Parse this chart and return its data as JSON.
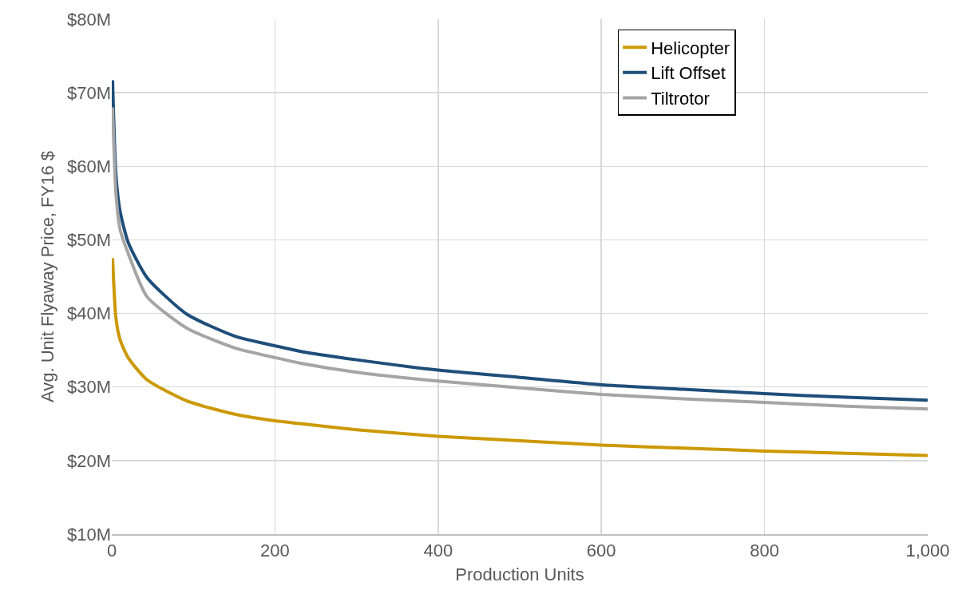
{
  "chart_data": {
    "type": "line",
    "xlabel": "Production Units",
    "ylabel": "Avg. Unit Flyaway Price, FY16 $",
    "xlim": [
      0,
      1000
    ],
    "xticks": [
      0,
      200,
      400,
      600,
      800,
      {
        "value": 1000,
        "label": "1,000"
      }
    ],
    "ylim": [
      10,
      80
    ],
    "yticks": [
      {
        "value": 10,
        "label": "$10M"
      },
      {
        "value": 20,
        "label": "$20M"
      },
      {
        "value": 30,
        "label": "$30M"
      },
      {
        "value": 40,
        "label": "$40M"
      },
      {
        "value": 50,
        "label": "$50M"
      },
      {
        "value": 60,
        "label": "$60M"
      },
      {
        "value": 70,
        "label": "$70M"
      },
      {
        "value": 80,
        "label": "$80M"
      }
    ],
    "grid": true,
    "legend": "top right",
    "marker": "none",
    "line_style": "solid",
    "series": [
      {
        "name": "Helicopter",
        "color": "#cc9900",
        "x": [
          1,
          5,
          10,
          20,
          43,
          92,
          151,
          200,
          233,
          300,
          400,
          500,
          600,
          700,
          800,
          900,
          1000
        ],
        "values": [
          47.5,
          39.5,
          36.5,
          34.0,
          31.0,
          28.1,
          26.3,
          25.4,
          25.0,
          24.2,
          23.3,
          22.7,
          22.1,
          21.7,
          21.3,
          21.0,
          20.7
        ]
      },
      {
        "name": "Lift Offset",
        "color": "#1f4e79",
        "x": [
          1,
          5,
          10,
          20,
          43,
          92,
          151,
          200,
          233,
          300,
          400,
          500,
          600,
          700,
          800,
          900,
          1000
        ],
        "values": [
          71.7,
          59.0,
          54.0,
          49.7,
          44.9,
          39.9,
          36.9,
          35.6,
          34.8,
          33.7,
          32.3,
          31.3,
          30.3,
          29.7,
          29.1,
          28.6,
          28.2
        ]
      },
      {
        "name": "Tiltrotor",
        "color": "#a5a5a5",
        "x": [
          1,
          5,
          10,
          20,
          43,
          92,
          151,
          200,
          233,
          300,
          400,
          500,
          600,
          700,
          800,
          900,
          1000
        ],
        "values": [
          68.0,
          56.5,
          51.5,
          48.2,
          42.3,
          38.0,
          35.3,
          34.0,
          33.2,
          32.0,
          30.8,
          29.9,
          29.0,
          28.4,
          27.9,
          27.4,
          27.0
        ]
      }
    ]
  }
}
